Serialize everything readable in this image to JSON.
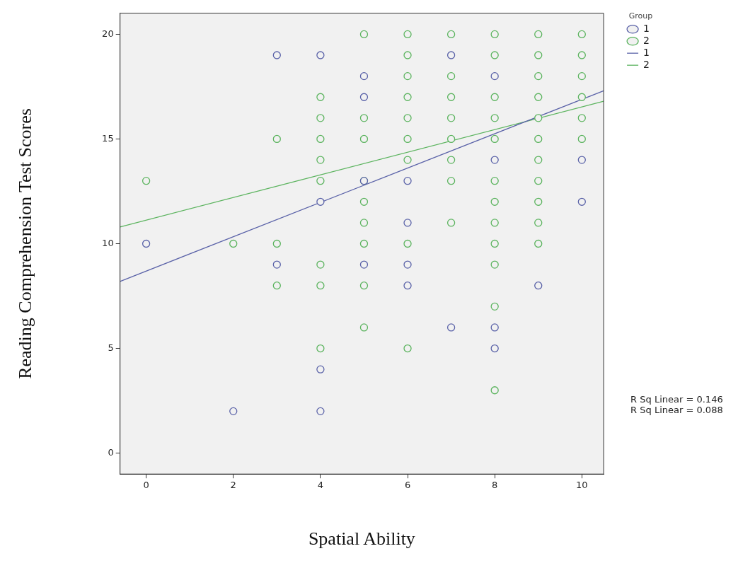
{
  "chart_data": {
    "type": "scatter",
    "xlabel": "Spatial Ability",
    "ylabel": "Reading Comprehension Test Scores",
    "legend_title": "Group",
    "legend": "top right",
    "grid": false,
    "marker": "circle",
    "xlim": [
      -0.6,
      10.5
    ],
    "ylim": [
      -1,
      21
    ],
    "xticks": [
      0,
      2,
      4,
      6,
      8,
      10
    ],
    "yticks": [
      0,
      5,
      10,
      15,
      20
    ],
    "series": [
      {
        "name": "1",
        "color": "#5a62a8",
        "x": [
          0,
          2,
          3,
          3,
          4,
          4,
          4,
          4,
          5,
          5,
          5,
          5,
          6,
          6,
          6,
          6,
          7,
          7,
          8,
          8,
          8,
          8,
          9,
          10,
          10
        ],
        "values": [
          10,
          2,
          19,
          9,
          19,
          12,
          4,
          2,
          18,
          17,
          13,
          9,
          13,
          11,
          9,
          8,
          19,
          6,
          18,
          14,
          6,
          5,
          8,
          14,
          12
        ]
      },
      {
        "name": "2",
        "color": "#5cb45f",
        "x": [
          0,
          2,
          3,
          3,
          3,
          4,
          4,
          4,
          4,
          4,
          4,
          4,
          4,
          5,
          5,
          5,
          5,
          5,
          5,
          5,
          5,
          5,
          6,
          6,
          6,
          6,
          6,
          6,
          6,
          6,
          6,
          7,
          7,
          7,
          7,
          7,
          7,
          7,
          7,
          8,
          8,
          8,
          8,
          8,
          8,
          8,
          8,
          8,
          8,
          8,
          8,
          9,
          9,
          9,
          9,
          9,
          9,
          9,
          9,
          9,
          9,
          9,
          10,
          10,
          10,
          10,
          10,
          10
        ],
        "values": [
          13,
          10,
          15,
          10,
          8,
          17,
          16,
          15,
          14,
          13,
          9,
          8,
          5,
          20,
          16,
          15,
          13,
          12,
          11,
          10,
          8,
          6,
          20,
          19,
          18,
          17,
          16,
          15,
          14,
          10,
          5,
          20,
          18,
          17,
          16,
          15,
          14,
          13,
          11,
          20,
          19,
          17,
          16,
          15,
          13,
          12,
          11,
          10,
          9,
          7,
          3,
          20,
          19,
          18,
          17,
          16,
          15,
          14,
          13,
          12,
          11,
          10,
          20,
          19,
          18,
          17,
          16,
          15
        ]
      },
      {
        "name": "1",
        "type": "line",
        "marker": "none",
        "color": "#5a62a8",
        "x": [
          -0.6,
          10.5
        ],
        "values": [
          8.2,
          17.3
        ]
      },
      {
        "name": "2",
        "type": "line",
        "marker": "none",
        "color": "#5cb45f",
        "x": [
          -0.6,
          10.5
        ],
        "values": [
          10.8,
          16.8
        ]
      }
    ],
    "annotations": [
      "R Sq Linear = 0.146",
      "R Sq Linear = 0.088"
    ]
  }
}
